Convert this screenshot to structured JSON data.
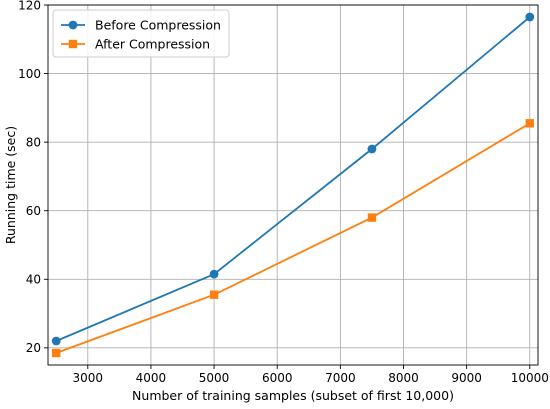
{
  "chart_data": {
    "type": "line",
    "title": "",
    "xlabel": "Number of training samples (subset of first 10,000)",
    "ylabel": "Running time (sec)",
    "xlim": [
      2370,
      10130
    ],
    "ylim": [
      15,
      120
    ],
    "x_ticks": [
      3000,
      4000,
      5000,
      6000,
      7000,
      8000,
      9000,
      10000
    ],
    "y_ticks": [
      20,
      40,
      60,
      80,
      100,
      120
    ],
    "grid": true,
    "legend_position": "top-left",
    "x": [
      2500,
      5000,
      7500,
      10000
    ],
    "series": [
      {
        "name": "Before Compression",
        "values": [
          22.0,
          41.5,
          78.0,
          116.5
        ],
        "color": "#1f77b4",
        "marker": "circle"
      },
      {
        "name": "After Compression",
        "values": [
          18.5,
          35.5,
          58.0,
          85.5
        ],
        "color": "#ff7f0e",
        "marker": "square"
      }
    ]
  }
}
